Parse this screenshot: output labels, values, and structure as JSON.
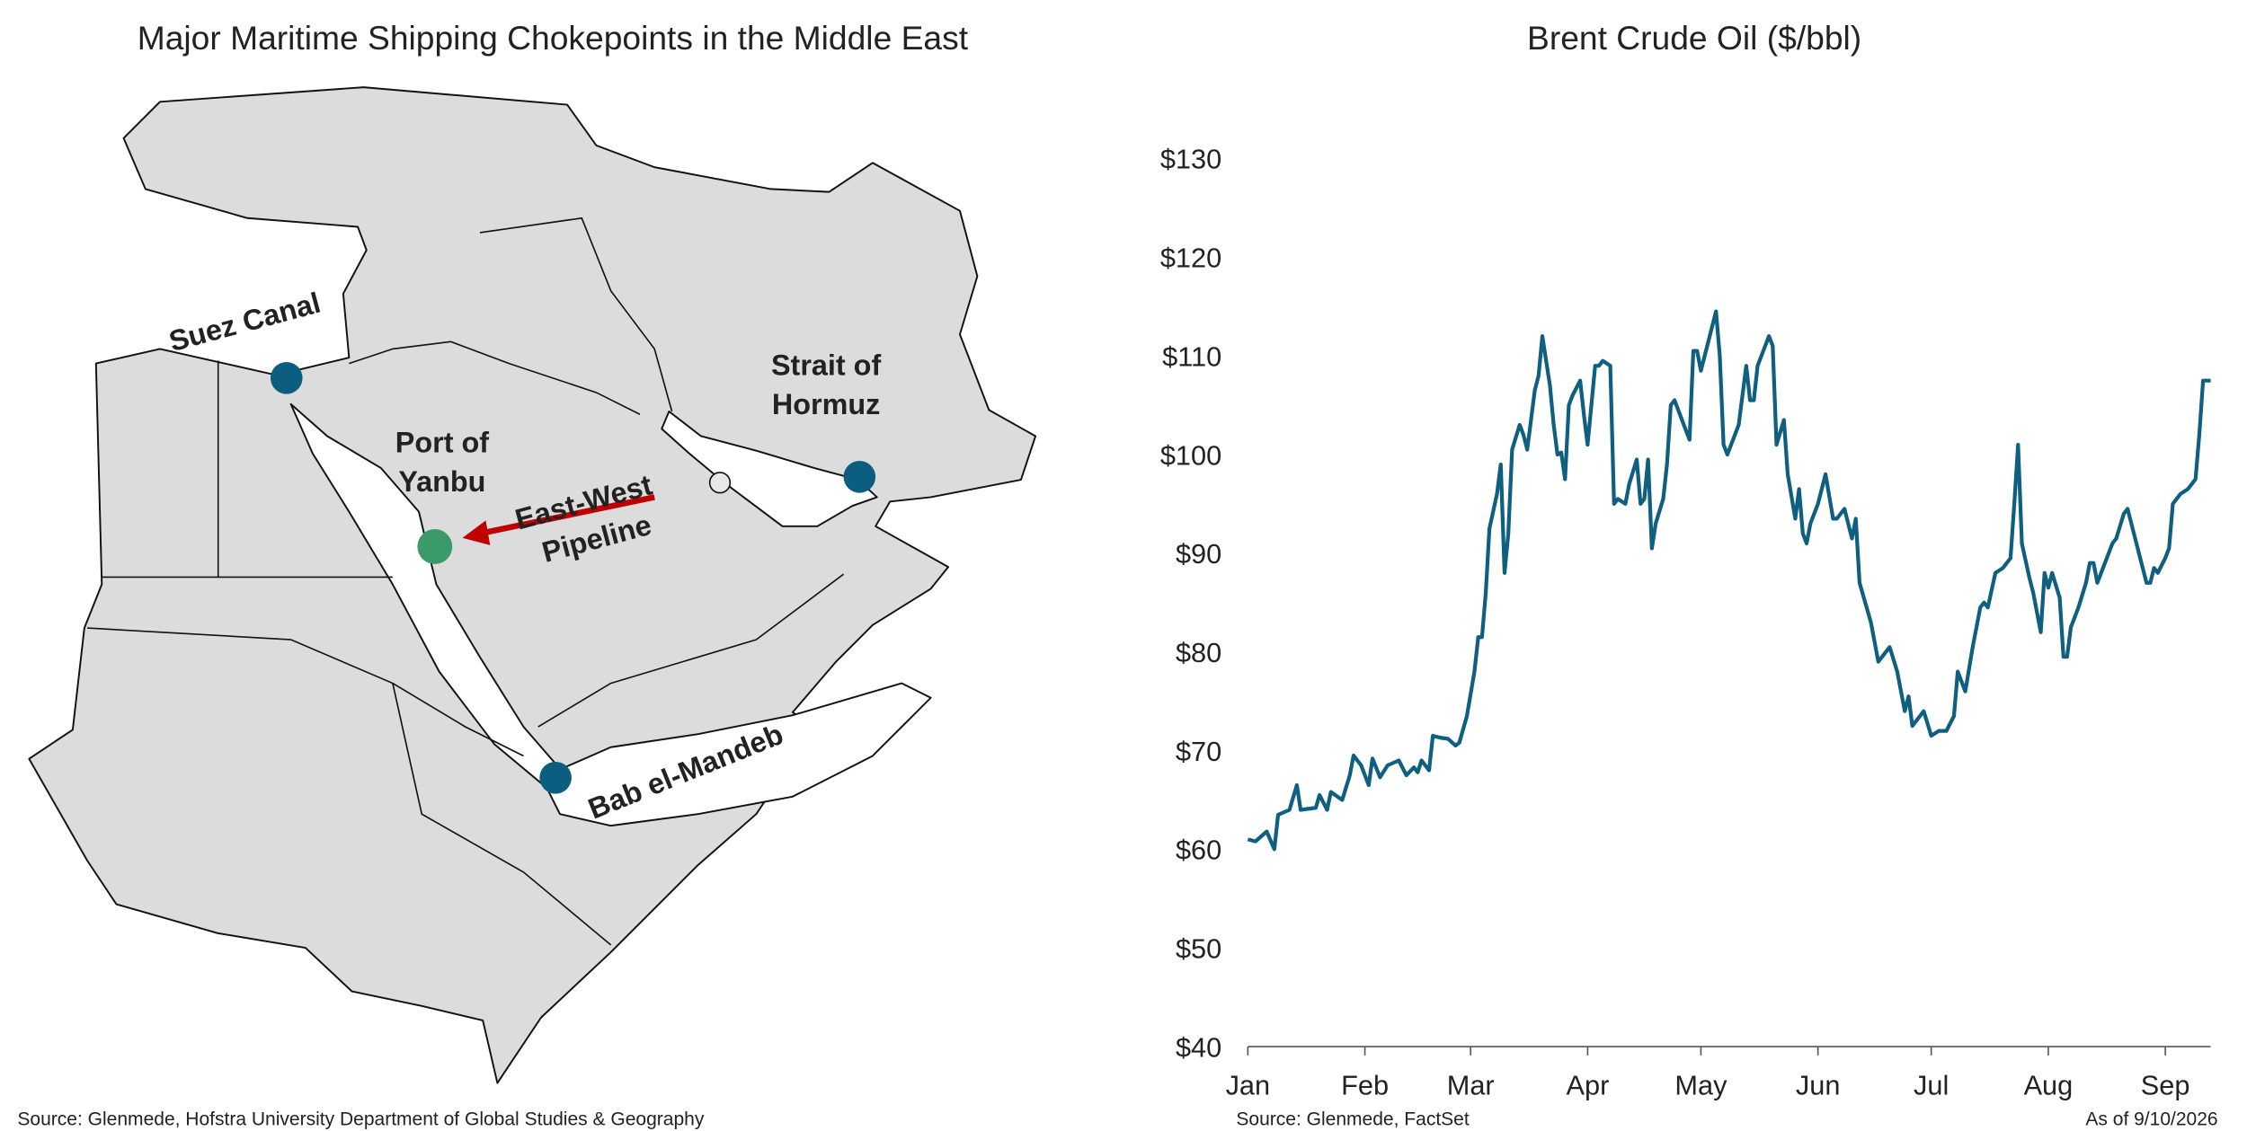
{
  "map": {
    "title": "Major Maritime Shipping Chokepoints in the Middle East",
    "labels": {
      "suez": "Suez Canal",
      "hormuz": [
        "Strait of",
        "Hormuz"
      ],
      "yanbu": [
        "Port of",
        "Yanbu"
      ],
      "pipeline": [
        "East-West",
        "Pipeline"
      ],
      "bab": "Bab el-Mandeb"
    },
    "source": "Source: Glenmede, Hofstra University Department of Global Studies & Geography"
  },
  "chart_data": {
    "type": "line",
    "title": "Brent Crude Oil ($/bbl)",
    "source": "Source: Glenmede, FactSet",
    "as_of": "As of 9/10/2026",
    "color": "#0e5f80",
    "x": [
      1,
      3,
      6,
      8,
      9,
      12,
      14,
      15,
      19,
      20,
      22,
      23,
      26,
      28,
      29,
      31,
      33,
      34,
      36,
      38,
      41,
      43,
      45,
      46,
      47,
      49,
      50,
      52,
      54,
      56,
      57,
      59,
      61,
      62,
      63,
      64,
      65,
      67,
      68,
      69,
      70,
      71,
      73,
      74,
      75,
      77,
      78,
      79,
      81,
      82,
      83,
      84,
      85,
      86,
      87,
      89,
      90,
      91,
      93,
      94,
      95,
      97,
      98,
      99,
      101,
      102,
      104,
      105,
      106,
      107,
      108,
      109,
      111,
      112,
      113,
      114,
      116,
      118,
      119,
      120,
      121,
      123,
      125,
      126,
      127,
      128,
      130,
      131,
      133,
      134,
      135,
      136,
      139,
      140,
      141,
      143,
      144,
      146,
      147,
      148,
      149,
      150,
      152,
      154,
      156,
      157,
      159,
      161,
      162,
      163,
      166,
      168,
      169,
      171,
      173,
      175,
      176,
      177,
      179,
      180,
      182,
      184,
      186,
      188,
      189,
      191,
      193,
      195,
      196,
      197,
      199,
      201,
      203,
      204,
      205,
      206,
      208,
      209,
      211,
      212,
      213,
      214,
      216,
      217,
      218,
      219,
      221,
      223,
      224,
      225,
      226,
      228,
      230,
      231,
      233,
      234,
      235,
      237,
      239,
      240,
      241,
      242,
      244,
      245,
      246,
      247,
      248,
      250,
      252,
      253,
      254,
      256
    ],
    "values": [
      61,
      60.8,
      61.8,
      60,
      63.5,
      64,
      66.5,
      64,
      64.2,
      65.5,
      64,
      65.8,
      65,
      67.5,
      69.5,
      68.5,
      66.5,
      69.2,
      67.3,
      68.5,
      69,
      67.5,
      68.3,
      67.8,
      69,
      68,
      71.5,
      71.3,
      71.2,
      70.5,
      70.8,
      73.5,
      78,
      81.5,
      81.5,
      86,
      92.5,
      96,
      99,
      88,
      92,
      100.5,
      103,
      102,
      100.5,
      106.5,
      108,
      112,
      107,
      103,
      100,
      100.2,
      97.5,
      105,
      106,
      107.5,
      104,
      101,
      109,
      109,
      109.5,
      109,
      95,
      95.5,
      95,
      97,
      99.5,
      95,
      95.5,
      99.5,
      90.5,
      93,
      95.5,
      99,
      105,
      105.5,
      103.5,
      101.5,
      110.5,
      110.5,
      108.5,
      111.5,
      114.5,
      110,
      101,
      100,
      102,
      103,
      109,
      105.5,
      105.5,
      109,
      112,
      111,
      101,
      103.5,
      98,
      93.5,
      96.5,
      92,
      91,
      93,
      95,
      98,
      93.5,
      93.5,
      94.5,
      91.5,
      93.5,
      87,
      83,
      79,
      79.5,
      80.5,
      78,
      74,
      75.5,
      72.5,
      73.5,
      74,
      71.5,
      72,
      72,
      73.5,
      78,
      76,
      80.5,
      84.5,
      85,
      84.5,
      88,
      88.5,
      89.5,
      95,
      101,
      91,
      87.5,
      86,
      82,
      88,
      86.5,
      88,
      85.5,
      79.5,
      79.5,
      82.5,
      84.5,
      87,
      89,
      89,
      87,
      89,
      91,
      91.5,
      94,
      94.5,
      93,
      90,
      87,
      87,
      88.5,
      88,
      89.5,
      90.5,
      95,
      95.5,
      96,
      96.5,
      97.5,
      102,
      107.5,
      107.5
    ],
    "xlim": [
      1,
      256
    ],
    "xticks": [
      {
        "value": 1,
        "label": "Jan"
      },
      {
        "value": 32,
        "label": "Feb"
      },
      {
        "value": 60,
        "label": "Mar"
      },
      {
        "value": 91,
        "label": "Apr"
      },
      {
        "value": 121,
        "label": "May"
      },
      {
        "value": 152,
        "label": "Jun"
      },
      {
        "value": 182,
        "label": "Jul"
      },
      {
        "value": 213,
        "label": "Aug"
      },
      {
        "value": 244,
        "label": "Sep"
      }
    ],
    "ylim": [
      40,
      130
    ],
    "yticks": [
      {
        "value": 40,
        "label": "$40"
      },
      {
        "value": 50,
        "label": "$50"
      },
      {
        "value": 60,
        "label": "$60"
      },
      {
        "value": 70,
        "label": "$70"
      },
      {
        "value": 80,
        "label": "$80"
      },
      {
        "value": 90,
        "label": "$90"
      },
      {
        "value": 100,
        "label": "$100"
      },
      {
        "value": 110,
        "label": "$110"
      },
      {
        "value": 120,
        "label": "$120"
      },
      {
        "value": 130,
        "label": "$130"
      }
    ],
    "grid": false
  }
}
